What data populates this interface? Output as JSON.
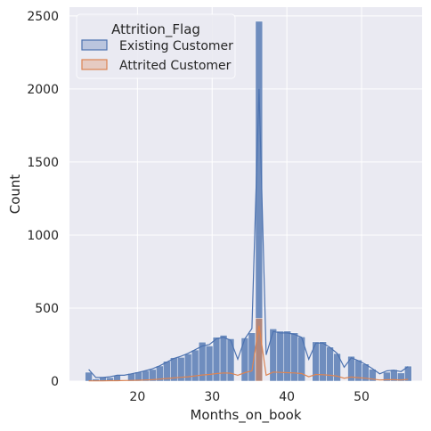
{
  "chart_data": {
    "type": "bar",
    "subtype": "histogram-with-kde",
    "xlabel": "Months_on_book",
    "ylabel": "Count",
    "xlim": [
      10.9,
      58.1
    ],
    "ylim": [
      0,
      2560
    ],
    "x_ticks": [
      20,
      30,
      40,
      50
    ],
    "y_ticks": [
      0,
      500,
      1000,
      1500,
      2000,
      2500
    ],
    "grid": true,
    "legend": {
      "title": "Attrition_Flag",
      "placement": "top-left",
      "entries": [
        {
          "label": "Existing Customer",
          "color": "#4c72b0"
        },
        {
          "label": "Attrited Customer",
          "color": "#dd8452"
        }
      ]
    },
    "bin_width": 0.95,
    "bin_starts": [
      13,
      13.95,
      14.9,
      15.85,
      16.8,
      17.75,
      18.7,
      19.65,
      20.6,
      21.55,
      22.5,
      23.45,
      24.4,
      25.35,
      26.3,
      27.25,
      28.2,
      29.15,
      30.1,
      31.05,
      32,
      32.95,
      33.9,
      34.85,
      35.8,
      36.75,
      37.7,
      38.65,
      39.6,
      40.55,
      41.5,
      42.45,
      43.4,
      44.35,
      45.3,
      46.25,
      47.2,
      48.15,
      49.1,
      50.05,
      51,
      51.95,
      52.9,
      53.85,
      54.8,
      55.75
    ],
    "series": [
      {
        "name": "Existing Customer",
        "color": "#4c72b0",
        "values": [
          61,
          15,
          26,
          24,
          41,
          0,
          53,
          62,
          72,
          80,
          104,
          136,
          161,
          163,
          186,
          213,
          267,
          241,
          301,
          314,
          290,
          0,
          296,
          331,
          2463,
          0,
          358,
          342,
          343,
          331,
          303,
          0,
          269,
          270,
          233,
          189,
          0,
          170,
          145,
          118,
          82,
          0,
          61,
          79,
          56,
          103
        ],
        "kde": [
          80,
          25,
          25,
          30,
          40,
          40,
          50,
          60,
          72,
          85,
          105,
          130,
          155,
          170,
          190,
          215,
          240,
          250,
          290,
          300,
          280,
          150,
          290,
          360,
          2000,
          180,
          340,
          330,
          330,
          320,
          300,
          150,
          260,
          260,
          230,
          190,
          95,
          160,
          140,
          115,
          85,
          50,
          70,
          75,
          65,
          100
        ]
      },
      {
        "name": "Attrited Customer",
        "color": "#dd8452",
        "values": [
          0,
          0,
          0,
          0,
          0,
          0,
          0,
          0,
          0,
          0,
          0,
          0,
          0,
          0,
          0,
          0,
          0,
          0,
          0,
          0,
          0,
          0,
          0,
          0,
          430,
          0,
          0,
          0,
          0,
          0,
          0,
          0,
          0,
          0,
          0,
          0,
          0,
          0,
          0,
          0,
          0,
          0,
          0,
          0,
          0,
          0
        ],
        "kde": [
          2,
          2,
          2,
          3,
          3,
          4,
          5,
          6,
          8,
          10,
          14,
          18,
          22,
          26,
          30,
          36,
          42,
          46,
          52,
          56,
          54,
          40,
          58,
          70,
          380,
          40,
          62,
          60,
          58,
          56,
          52,
          30,
          46,
          44,
          40,
          34,
          20,
          28,
          24,
          20,
          14,
          8,
          10,
          10,
          8,
          12
        ]
      }
    ]
  }
}
